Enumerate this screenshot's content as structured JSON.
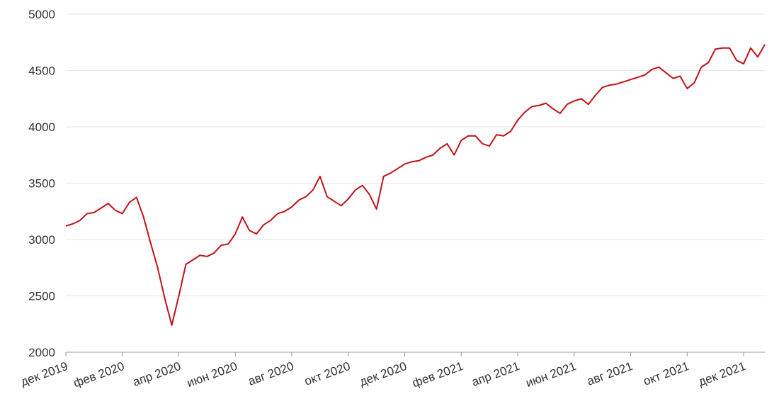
{
  "chart_data": {
    "type": "line",
    "color": "#c0111a",
    "grid": true,
    "values": [
      3120,
      3140,
      3170,
      3230,
      3240,
      3280,
      3320,
      3260,
      3230,
      3330,
      3375,
      3200,
      2970,
      2750,
      2480,
      2240,
      2500,
      2780,
      2820,
      2860,
      2850,
      2880,
      2950,
      2960,
      3050,
      3200,
      3080,
      3050,
      3130,
      3170,
      3230,
      3250,
      3290,
      3350,
      3380,
      3440,
      3560,
      3380,
      3340,
      3300,
      3360,
      3440,
      3480,
      3400,
      3270,
      3560,
      3590,
      3630,
      3670,
      3690,
      3700,
      3730,
      3750,
      3810,
      3850,
      3750,
      3880,
      3920,
      3920,
      3850,
      3830,
      3930,
      3920,
      3960,
      4060,
      4130,
      4180,
      4190,
      4210,
      4160,
      4120,
      4200,
      4230,
      4250,
      4200,
      4280,
      4350,
      4370,
      4380,
      4400,
      4420,
      4440,
      4460,
      4510,
      4530,
      4480,
      4430,
      4450,
      4340,
      4390,
      4530,
      4570,
      4690,
      4700,
      4700,
      4590,
      4560,
      4700,
      4620,
      4730
    ],
    "xlim": [
      0,
      99
    ],
    "xticks": [
      {
        "value": 0,
        "label": "дек 2019"
      },
      {
        "value": 8,
        "label": "фев 2020"
      },
      {
        "value": 16,
        "label": "апр 2020"
      },
      {
        "value": 24,
        "label": "июн 2020"
      },
      {
        "value": 32,
        "label": "авг 2020"
      },
      {
        "value": 40,
        "label": "окт 2020"
      },
      {
        "value": 48,
        "label": "дек 2020"
      },
      {
        "value": 56,
        "label": "фев 2021"
      },
      {
        "value": 64,
        "label": "апр 2021"
      },
      {
        "value": 72,
        "label": "июн 2021"
      },
      {
        "value": 80,
        "label": "авг 2021"
      },
      {
        "value": 88,
        "label": "окт 2021"
      },
      {
        "value": 96,
        "label": "дек 2021"
      }
    ],
    "ylim": [
      2000,
      5000
    ],
    "yticks": [
      2000,
      2500,
      3000,
      3500,
      4000,
      4500,
      5000
    ]
  }
}
